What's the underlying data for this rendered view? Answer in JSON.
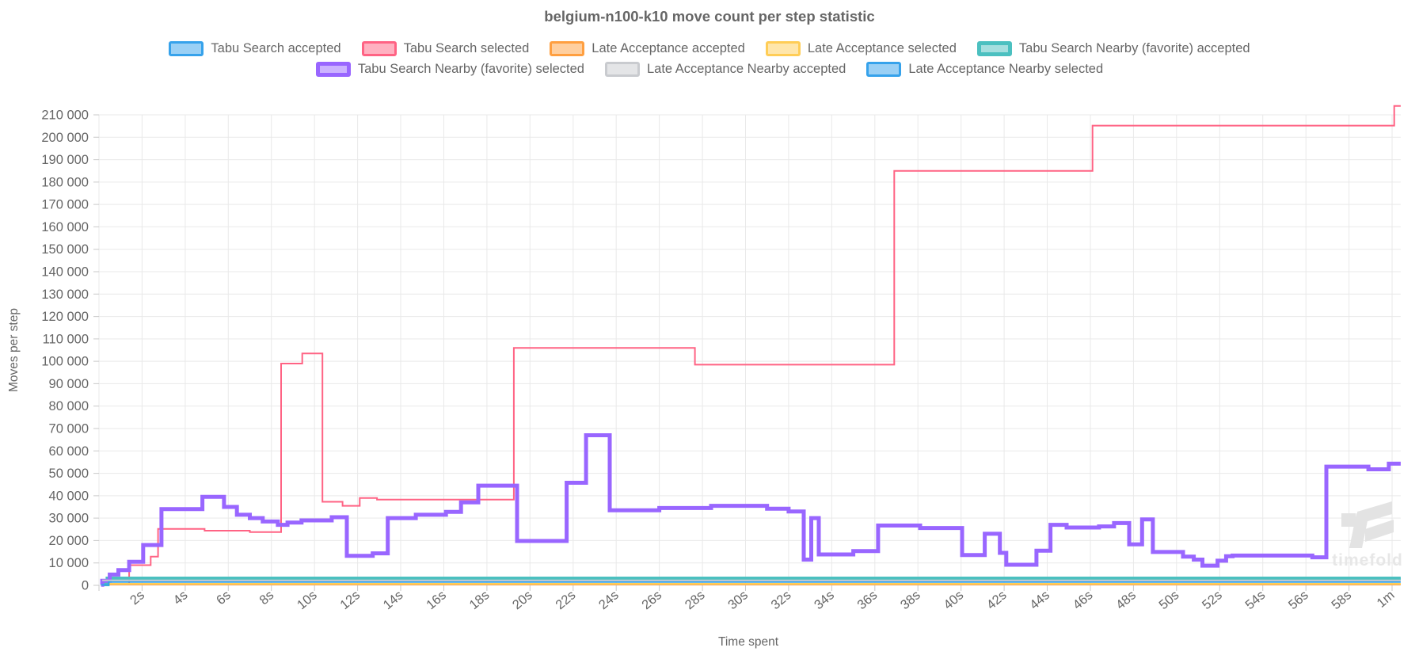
{
  "title": "belgium-n100-k10 move count per step statistic",
  "watermark": {
    "text": "timefold",
    "icon_color": "#e3e3e3",
    "text_color": "#e7e7e7"
  },
  "colors": {
    "grid": "#e9e9e9",
    "tick": "#c9c9c9",
    "text": "#666666"
  },
  "legend": {
    "rows": [
      [
        {
          "label": "Tabu Search accepted",
          "color": "#36a2eb",
          "fill": "#9ad0f5",
          "thick": false
        },
        {
          "label": "Tabu Search selected",
          "color": "#ff6384",
          "fill": "#ffb1c1",
          "thick": false
        },
        {
          "label": "Late Acceptance accepted",
          "color": "#ff9f40",
          "fill": "#ffcf9f",
          "thick": false
        },
        {
          "label": "Late Acceptance selected",
          "color": "#ffcd56",
          "fill": "#ffe6ab",
          "thick": false
        },
        {
          "label": "Tabu Search Nearby (favorite) accepted",
          "color": "#4bc0c0",
          "fill": "#a5dfdf",
          "thick": true
        }
      ],
      [
        {
          "label": "Tabu Search Nearby (favorite) selected",
          "color": "#9966ff",
          "fill": "#ccb3ff",
          "thick": true
        },
        {
          "label": "Late Acceptance Nearby accepted",
          "color": "#c9cbcf",
          "fill": "#e4e5e7",
          "thick": false
        },
        {
          "label": "Late Acceptance Nearby selected",
          "color": "#36a2eb",
          "fill": "#9ad0f5",
          "thick": false
        }
      ]
    ]
  },
  "chart_data": {
    "type": "line",
    "step": "after",
    "title": "belgium-n100-k10 move count per step statistic",
    "xlabel": "Time spent",
    "ylabel": "Moves per step",
    "x_unit": "seconds",
    "x_range": [
      0,
      60.4
    ],
    "ylim": [
      0,
      215000
    ],
    "y_tick_step": 10000,
    "y_tick_max": 210000,
    "grid": true,
    "legend_position": "top",
    "x_tick_seconds": [
      2,
      4,
      6,
      8,
      10,
      12,
      14,
      16,
      18,
      20,
      22,
      24,
      26,
      28,
      30,
      32,
      34,
      36,
      38,
      40,
      42,
      44,
      46,
      48,
      50,
      52,
      54,
      56,
      58,
      60
    ],
    "x_tick_labels": [
      "2s",
      "4s",
      "6s",
      "8s",
      "10s",
      "12s",
      "14s",
      "16s",
      "18s",
      "20s",
      "22s",
      "24s",
      "26s",
      "28s",
      "30s",
      "32s",
      "34s",
      "36s",
      "38s",
      "40s",
      "42s",
      "44s",
      "46s",
      "48s",
      "50s",
      "52s",
      "54s",
      "56s",
      "58s",
      "1m"
    ],
    "series": [
      {
        "name": "Tabu Search accepted",
        "color": "#36a2eb",
        "width": 2,
        "points": [
          [
            0.1,
            300
          ],
          [
            0.35,
            2800
          ]
        ]
      },
      {
        "name": "Tabu Search selected",
        "color": "#ff6384",
        "width": 2,
        "points": [
          [
            0.1,
            600
          ],
          [
            1.4,
            9000
          ],
          [
            2.4,
            12800
          ],
          [
            2.74,
            25200
          ],
          [
            4.9,
            24400
          ],
          [
            7.0,
            23800
          ],
          [
            8.45,
            99000
          ],
          [
            9.43,
            103500
          ],
          [
            10.37,
            37300
          ],
          [
            11.3,
            35500
          ],
          [
            12.1,
            39000
          ],
          [
            12.9,
            38300
          ],
          [
            19.25,
            106000
          ],
          [
            27.65,
            98500
          ],
          [
            36.9,
            185000
          ],
          [
            46.1,
            205200
          ],
          [
            60.1,
            214000
          ]
        ]
      },
      {
        "name": "Late Acceptance accepted",
        "color": "#ff9f40",
        "width": 2,
        "points": [
          [
            0.15,
            400
          ]
        ]
      },
      {
        "name": "Late Acceptance selected",
        "color": "#ffcd56",
        "width": 2,
        "points": [
          [
            0.15,
            700
          ]
        ]
      },
      {
        "name": "Tabu Search Nearby (favorite) accepted",
        "color": "#4bc0c0",
        "width": 5,
        "points": [
          [
            0.1,
            500
          ],
          [
            0.4,
            3000
          ]
        ]
      },
      {
        "name": "Tabu Search Nearby (favorite) selected",
        "color": "#9966ff",
        "width": 5,
        "points": [
          [
            0.1,
            300
          ],
          [
            0.15,
            2000
          ],
          [
            0.5,
            4800
          ],
          [
            0.9,
            6800
          ],
          [
            1.4,
            10500
          ],
          [
            2.05,
            18000
          ],
          [
            2.9,
            34000
          ],
          [
            4.8,
            39500
          ],
          [
            5.8,
            35000
          ],
          [
            6.4,
            31500
          ],
          [
            7.0,
            30000
          ],
          [
            7.6,
            28500
          ],
          [
            8.3,
            27000
          ],
          [
            8.75,
            28000
          ],
          [
            9.4,
            29000
          ],
          [
            10.8,
            30400
          ],
          [
            11.5,
            13200
          ],
          [
            12.7,
            14300
          ],
          [
            13.4,
            30000
          ],
          [
            14.7,
            31500
          ],
          [
            16.1,
            32800
          ],
          [
            16.8,
            37000
          ],
          [
            17.6,
            44500
          ],
          [
            19.4,
            19800
          ],
          [
            21.7,
            45800
          ],
          [
            22.6,
            67000
          ],
          [
            23.7,
            33500
          ],
          [
            26.0,
            34500
          ],
          [
            28.4,
            35500
          ],
          [
            31.0,
            34200
          ],
          [
            32.0,
            33000
          ],
          [
            32.7,
            11500
          ],
          [
            33.05,
            30000
          ],
          [
            33.4,
            13800
          ],
          [
            35.0,
            15300
          ],
          [
            36.15,
            26700
          ],
          [
            38.1,
            25600
          ],
          [
            40.05,
            13500
          ],
          [
            41.1,
            23000
          ],
          [
            41.8,
            14500
          ],
          [
            42.1,
            9200
          ],
          [
            43.5,
            15500
          ],
          [
            44.15,
            27000
          ],
          [
            44.9,
            25800
          ],
          [
            46.4,
            26300
          ],
          [
            47.1,
            27800
          ],
          [
            47.8,
            18300
          ],
          [
            48.4,
            29400
          ],
          [
            48.9,
            14900
          ],
          [
            50.3,
            12800
          ],
          [
            50.8,
            11500
          ],
          [
            51.2,
            8800
          ],
          [
            51.9,
            11000
          ],
          [
            52.3,
            13000
          ],
          [
            52.6,
            13300
          ],
          [
            56.3,
            12500
          ],
          [
            56.95,
            53000
          ],
          [
            58.9,
            51800
          ],
          [
            59.85,
            54300
          ]
        ]
      },
      {
        "name": "Late Acceptance Nearby accepted",
        "color": "#c9cbcf",
        "width": 2,
        "points": [
          [
            0.15,
            2200
          ]
        ]
      },
      {
        "name": "Late Acceptance Nearby selected",
        "color": "#36a2eb",
        "width": 2,
        "points": [
          [
            0.1,
            200
          ],
          [
            0.45,
            1500
          ]
        ]
      }
    ]
  }
}
